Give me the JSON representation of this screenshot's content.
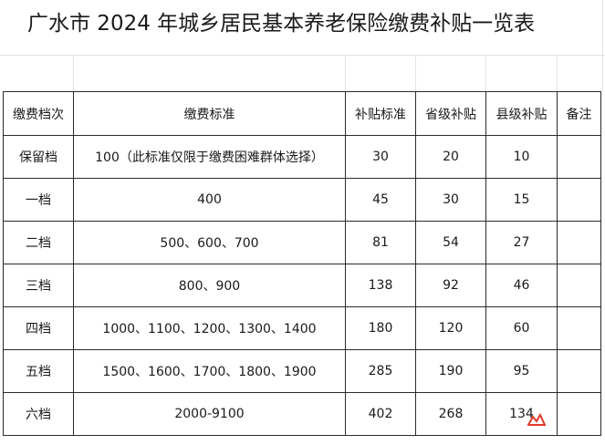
{
  "title": "广水市 2024 年城乡居民基本养老保险缴费补贴一览表",
  "table": {
    "headers": [
      "缴费档次",
      "缴费标准",
      "补贴标准",
      "省级补贴",
      "县级补贴",
      "备注"
    ],
    "rows": [
      {
        "level": "保留档",
        "standard": "100（此标准仅限于缴费困难群体选择）",
        "subsidy": "30",
        "provincial": "20",
        "county": "10",
        "note": ""
      },
      {
        "level": "一档",
        "standard": "400",
        "subsidy": "45",
        "provincial": "30",
        "county": "15",
        "note": ""
      },
      {
        "level": "二档",
        "standard": "500、600、700",
        "subsidy": "81",
        "provincial": "54",
        "county": "27",
        "note": ""
      },
      {
        "level": "三档",
        "standard": "800、900",
        "subsidy": "138",
        "provincial": "92",
        "county": "46",
        "note": ""
      },
      {
        "level": "四档",
        "standard": "1000、1100、1200、1300、1400",
        "subsidy": "180",
        "provincial": "120",
        "county": "60",
        "note": ""
      },
      {
        "level": "五档",
        "standard": "1500、1600、1700、1800、1900",
        "subsidy": "285",
        "provincial": "190",
        "county": "95",
        "note": ""
      },
      {
        "level": "六档",
        "standard": "2000-9100",
        "subsidy": "402",
        "provincial": "268",
        "county": "134",
        "note": ""
      }
    ]
  },
  "colors": {
    "stamp": "#e03a2a"
  }
}
